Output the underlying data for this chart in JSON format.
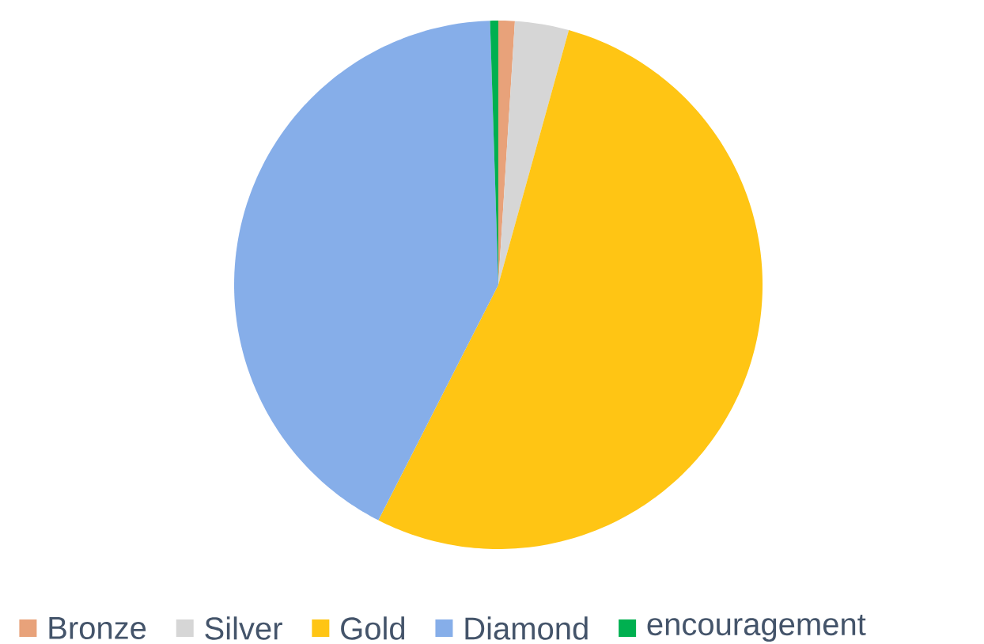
{
  "chart_data": {
    "type": "pie",
    "categories": [
      "Bronze",
      "Silver",
      "Gold",
      "Diamond",
      "encouragement"
    ],
    "values": [
      1,
      3.3,
      53.2,
      42,
      0.5
    ],
    "colors": [
      "#e8a27a",
      "#d6d6d6",
      "#ffc514",
      "#86aee9",
      "#00b050"
    ],
    "legend": "bottom"
  }
}
